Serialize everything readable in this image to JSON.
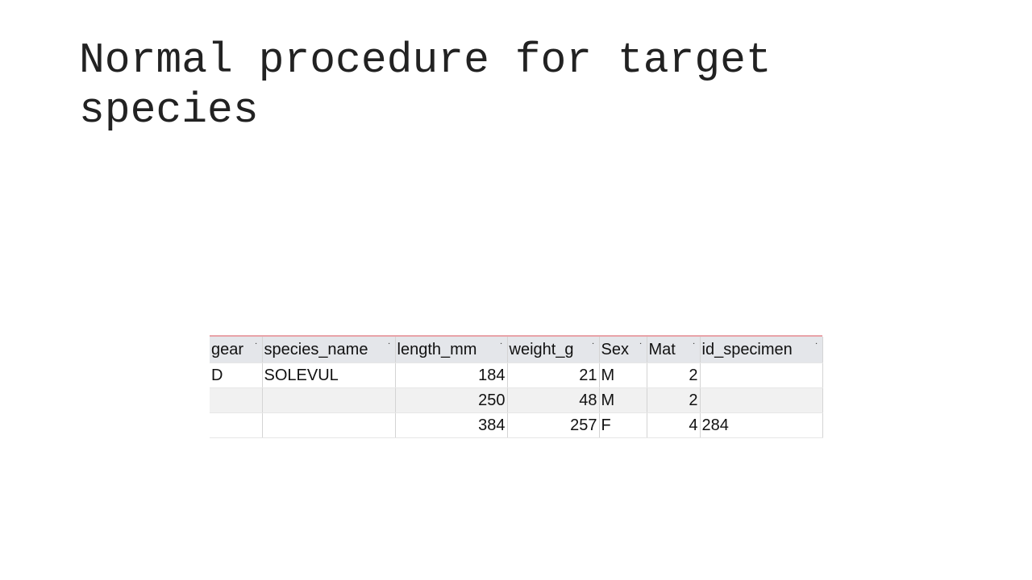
{
  "slide": {
    "title": "Normal procedure for target species"
  },
  "table": {
    "headers": [
      "gear",
      "species_name",
      "length_mm",
      "weight_g",
      "Sex",
      "Mat",
      "id_specimen"
    ],
    "sort_glyph": "˙",
    "rows": [
      [
        "D",
        "SOLEVUL",
        "184",
        "21",
        "M",
        "2",
        ""
      ],
      [
        "",
        "",
        "250",
        "48",
        "M",
        "2",
        ""
      ],
      [
        "",
        "",
        "384",
        "257",
        "F",
        "4",
        "284"
      ]
    ]
  }
}
